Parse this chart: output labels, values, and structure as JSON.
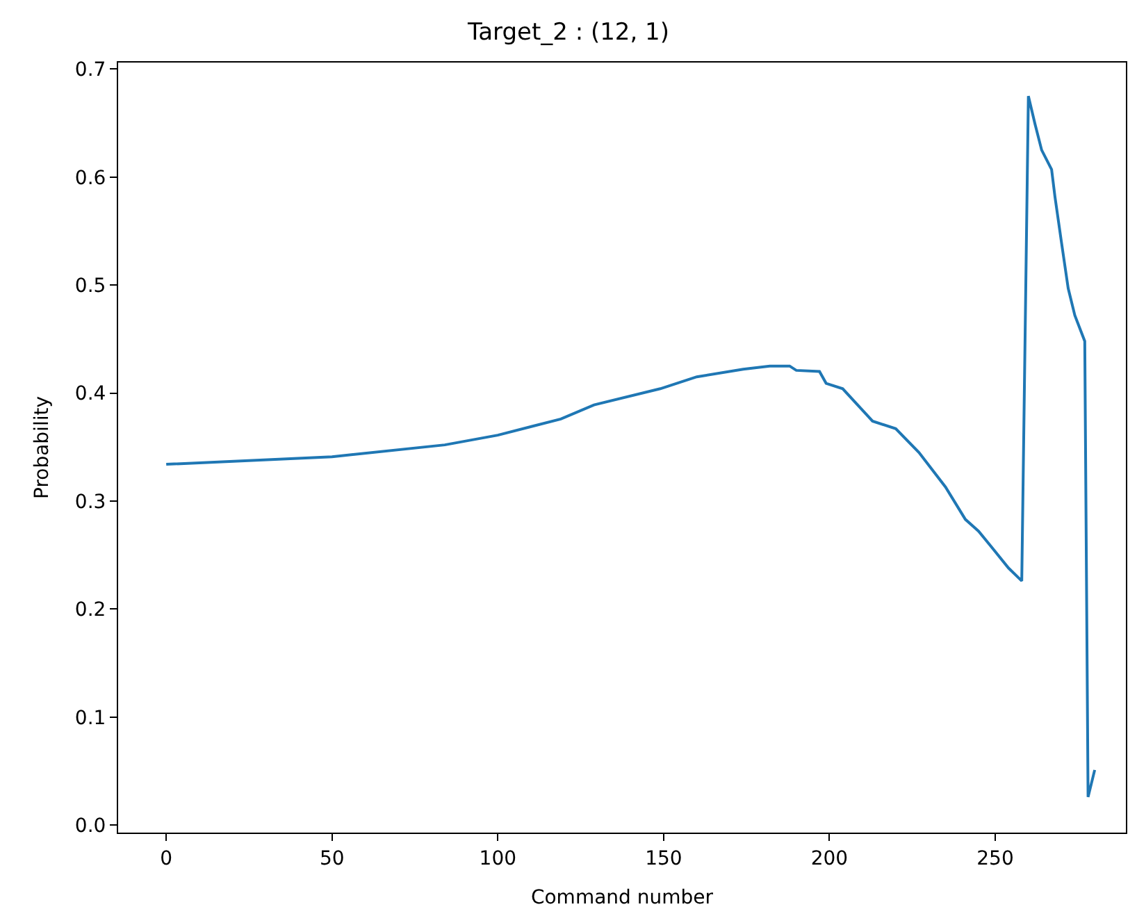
{
  "chart_data": {
    "type": "line",
    "title": "Target_2 : (12, 1)",
    "xlabel": "Command number",
    "ylabel": "Probability",
    "x": [
      0,
      50,
      84,
      100,
      119,
      129,
      149,
      160,
      174,
      182,
      188,
      190,
      197,
      199,
      204,
      210,
      213,
      220,
      227,
      235,
      241,
      245,
      249,
      254,
      258,
      260,
      262,
      264,
      267,
      268,
      270,
      272,
      274,
      277,
      278,
      280
    ],
    "series": [
      {
        "color": "#1f77b4",
        "values": [
          0.334,
          0.341,
          0.352,
          0.361,
          0.376,
          0.389,
          0.404,
          0.415,
          0.422,
          0.425,
          0.425,
          0.421,
          0.42,
          0.409,
          0.404,
          0.384,
          0.374,
          0.367,
          0.345,
          0.313,
          0.283,
          0.272,
          0.257,
          0.238,
          0.226,
          0.675,
          0.649,
          0.625,
          0.607,
          0.582,
          0.539,
          0.497,
          0.472,
          0.448,
          0.026,
          0.051
        ]
      }
    ],
    "xlim": [
      -14.5,
      289.4
    ],
    "ylim": [
      -0.007,
      0.706
    ],
    "xticks": [
      0,
      50,
      100,
      150,
      200,
      250
    ],
    "yticks": [
      {
        "value": 0,
        "label": "0.0"
      },
      0.1,
      0.2,
      0.3,
      0.4,
      0.5,
      0.6,
      0.7
    ],
    "marker": "none",
    "line_style": "solid"
  }
}
